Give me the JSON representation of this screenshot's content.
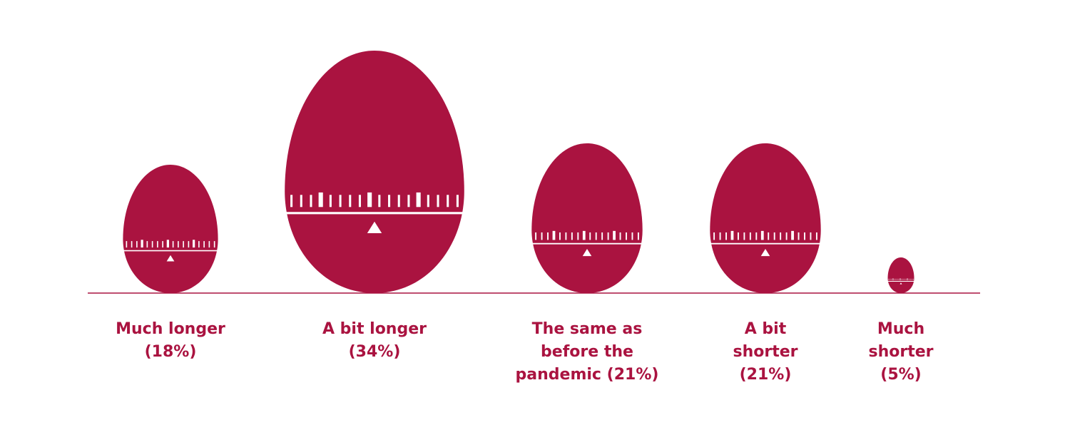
{
  "chart_data": {
    "type": "pictogram",
    "color": "#aa1340",
    "categories": [
      "Much longer",
      "A bit longer",
      "The same as before the pandemic",
      "A bit shorter",
      "Much shorter"
    ],
    "values": [
      18,
      34,
      21,
      21,
      5
    ],
    "value_labels": [
      "(18%)",
      "(34%)",
      "(21%)",
      "(21%)",
      "(5%)"
    ]
  }
}
